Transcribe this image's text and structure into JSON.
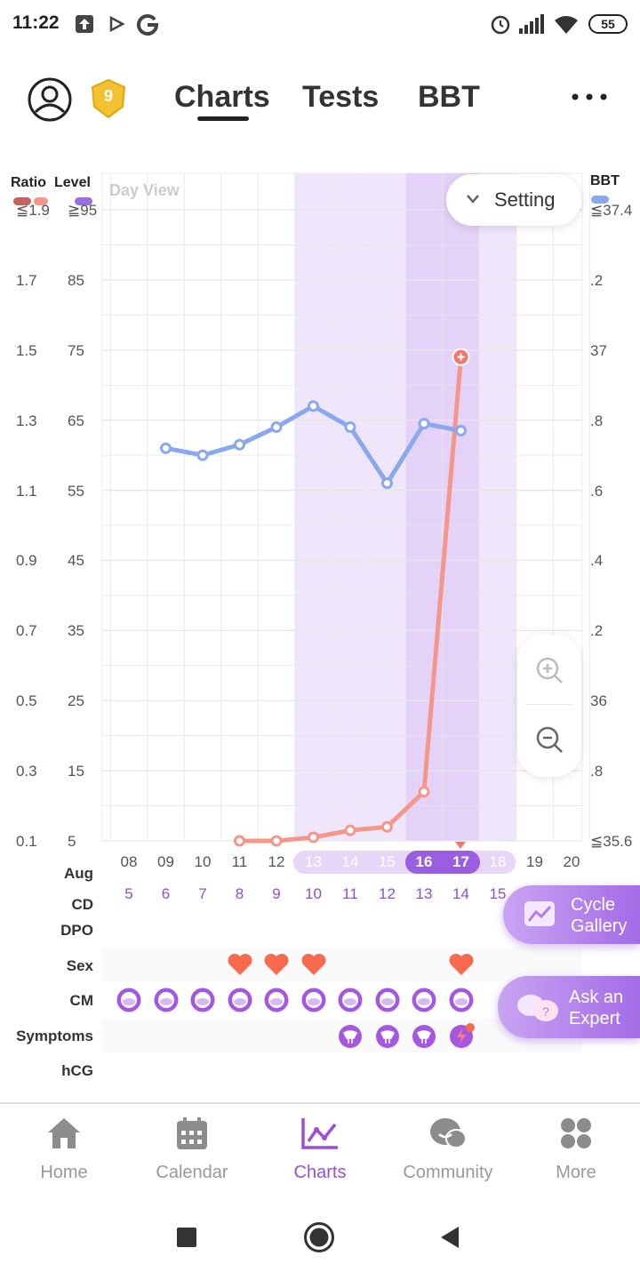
{
  "status_bar": {
    "time": "11:22",
    "battery": "55"
  },
  "header": {
    "tabs": [
      {
        "label": "Charts",
        "active": true
      },
      {
        "label": "Tests"
      },
      {
        "label": "BBT"
      }
    ],
    "level_badge": "9"
  },
  "chart": {
    "left_headers": {
      "ratio": "Ratio",
      "level": "Level"
    },
    "right_header": "BBT",
    "view_label": "Day View",
    "setting_label": "Setting",
    "ratio_ticks": [
      "≦1.9",
      "1.7",
      "1.5",
      "1.3",
      "1.1",
      "0.9",
      "0.7",
      "0.5",
      "0.3",
      "0.1"
    ],
    "level_ticks": [
      "≧95",
      "85",
      "75",
      "65",
      "55",
      "45",
      "35",
      "25",
      "15",
      "5"
    ],
    "bbt_ticks": [
      "≦37.4",
      ".2",
      "37",
      ".8",
      ".6",
      ".4",
      ".2",
      "36",
      ".8",
      "≦35.6"
    ],
    "month": "Aug",
    "dates": [
      "08",
      "09",
      "10",
      "11",
      "12",
      "13",
      "14",
      "15",
      "16",
      "17",
      "18",
      "19",
      "20"
    ],
    "cycle_days": [
      "5",
      "6",
      "7",
      "8",
      "9",
      "10",
      "11",
      "12",
      "13",
      "14",
      "15"
    ],
    "row_labels": {
      "cd": "CD",
      "dpo": "DPO",
      "sex": "Sex",
      "cm": "CM",
      "symptoms": "Symptoms",
      "hcg": "hCG"
    },
    "colors": {
      "level_line": "#f4978a",
      "bbt_line": "#8aa8ee",
      "fertile": "#efe6fb",
      "ovulation": "#e4d2f8",
      "accent": "#8a4fd6"
    }
  },
  "chart_data": {
    "type": "line",
    "x": [
      "08",
      "09",
      "10",
      "11",
      "12",
      "13",
      "14",
      "15",
      "16",
      "17",
      "18",
      "19",
      "20"
    ],
    "series": [
      {
        "name": "Level",
        "axis": "left",
        "values": [
          null,
          null,
          null,
          5,
          5,
          5.5,
          6.5,
          7,
          12,
          74,
          null,
          null,
          null
        ]
      },
      {
        "name": "BBT",
        "axis": "right",
        "values": [
          null,
          36.72,
          36.7,
          36.73,
          36.78,
          36.84,
          36.78,
          36.62,
          36.79,
          36.77,
          null,
          null,
          null
        ]
      }
    ],
    "ylim_level": [
      5,
      95
    ],
    "ylim_bbt": [
      35.6,
      37.4
    ],
    "sex_days": [
      "11",
      "12",
      "13",
      "17"
    ],
    "cm_days": [
      "08",
      "09",
      "10",
      "11",
      "12",
      "13",
      "14",
      "15",
      "16",
      "17"
    ],
    "symptom_days": [
      "14",
      "15",
      "16",
      "17"
    ]
  },
  "floating": {
    "cycle_gallery": "Cycle\nGallery",
    "ask_expert": "Ask an\nExpert"
  },
  "bottom_nav": [
    {
      "label": "Home",
      "icon": "home-icon"
    },
    {
      "label": "Calendar",
      "icon": "calendar-icon"
    },
    {
      "label": "Charts",
      "icon": "charts-icon",
      "active": true
    },
    {
      "label": "Community",
      "icon": "community-icon"
    },
    {
      "label": "More",
      "icon": "more-icon"
    }
  ]
}
